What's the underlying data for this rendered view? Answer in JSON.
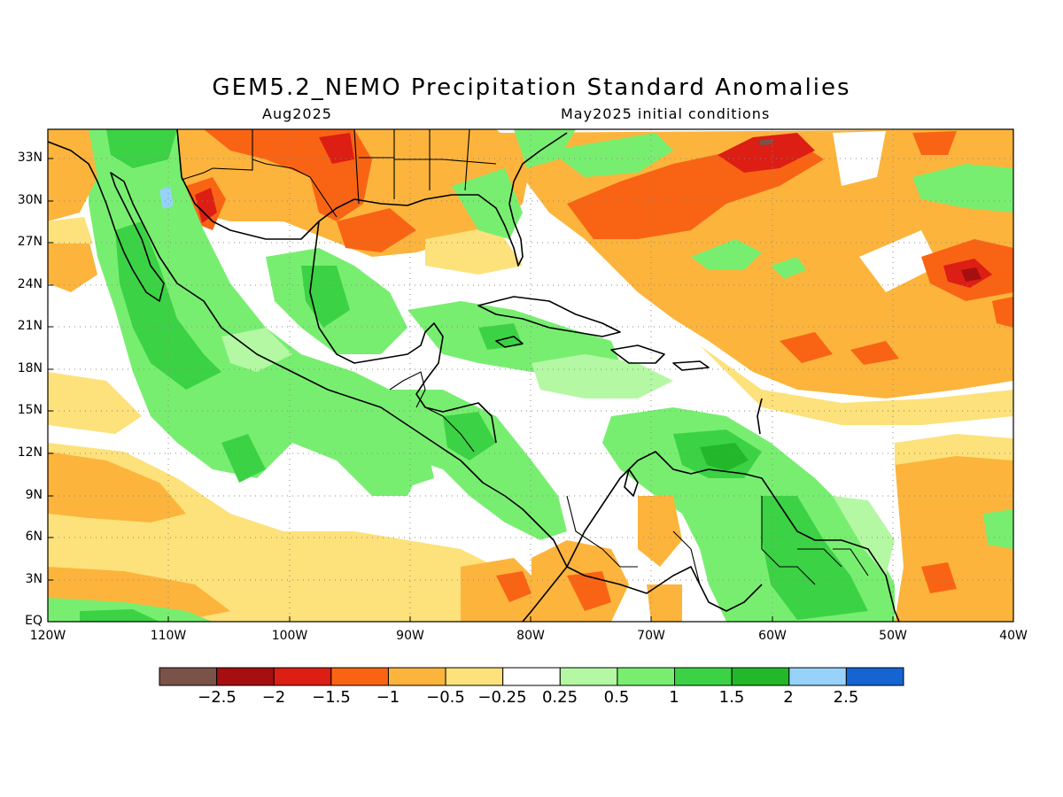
{
  "title": "GEM5.2_NEMO Precipitation Standard Anomalies",
  "valid_month": "Aug2025",
  "init_label": "May2025 initial conditions",
  "lat_labels": [
    "33N",
    "30N",
    "27N",
    "24N",
    "21N",
    "18N",
    "15N",
    "12N",
    "9N",
    "6N",
    "3N",
    "EQ"
  ],
  "lon_labels": [
    "120W",
    "110W",
    "100W",
    "90W",
    "80W",
    "70W",
    "60W",
    "50W",
    "40W"
  ],
  "colorbar": {
    "colors": [
      "#7a5248",
      "#a50f0f",
      "#dc1e14",
      "#f86414",
      "#fcb43c",
      "#fde17a",
      "#ffffff",
      "#b4f8a4",
      "#78ee70",
      "#3cd245",
      "#22b82a",
      "#96d2fa",
      "#1464d2"
    ],
    "labels": [
      "−2.5",
      "−2",
      "−1.5",
      "−1",
      "−0.5",
      "−0.25",
      "0.25",
      "0.5",
      "1",
      "1.5",
      "2",
      "2.5"
    ]
  },
  "palette": {
    "dry_1": "#fde17a",
    "dry_2": "#fcb43c",
    "dry_3": "#f86414",
    "dry_4": "#dc1e14",
    "dry_5": "#a50f0f",
    "dry_6": "#7a5248",
    "wet_1": "#b4f8a4",
    "wet_2": "#78ee70",
    "wet_3": "#3cd245",
    "wet_4": "#22b82a",
    "wet_5": "#96d2fa"
  }
}
